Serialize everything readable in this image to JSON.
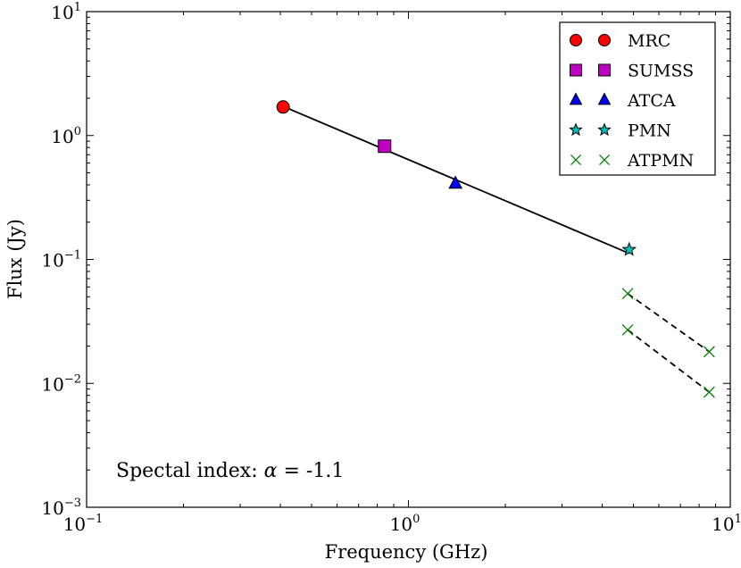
{
  "chart_data": {
    "type": "scatter",
    "scale": {
      "x": "log",
      "y": "log"
    },
    "xlabel": "Frequency (GHz)",
    "ylabel": "Flux (Jy)",
    "xlim": [
      0.1,
      10
    ],
    "ylim": [
      0.001,
      10
    ],
    "x_ticks": [
      {
        "value": 0.1,
        "base": "10",
        "exp": "−1"
      },
      {
        "value": 1,
        "base": "10",
        "exp": "0"
      },
      {
        "value": 10,
        "base": "10",
        "exp": "1"
      }
    ],
    "y_ticks": [
      {
        "value": 0.001,
        "base": "10",
        "exp": "−3"
      },
      {
        "value": 0.01,
        "base": "10",
        "exp": "−2"
      },
      {
        "value": 0.1,
        "base": "10",
        "exp": "−1"
      },
      {
        "value": 1,
        "base": "10",
        "exp": "0"
      },
      {
        "value": 10,
        "base": "10",
        "exp": "1"
      }
    ],
    "series": [
      {
        "name": "MRC",
        "marker": "circle",
        "color": "#ff0000",
        "points": [
          {
            "x": 0.408,
            "y": 1.7
          }
        ]
      },
      {
        "name": "SUMSS",
        "marker": "square",
        "color": "#c000c0",
        "points": [
          {
            "x": 0.843,
            "y": 0.82
          }
        ]
      },
      {
        "name": "ATCA",
        "marker": "triangle",
        "color": "#0000ff",
        "points": [
          {
            "x": 1.4,
            "y": 0.41
          }
        ]
      },
      {
        "name": "PMN",
        "marker": "star",
        "color": "#00c0c0",
        "points": [
          {
            "x": 4.85,
            "y": 0.12
          }
        ]
      },
      {
        "name": "ATPMN",
        "marker": "x",
        "color": "#008000",
        "points": [
          {
            "x": 4.8,
            "y": 0.053
          },
          {
            "x": 4.8,
            "y": 0.027
          },
          {
            "x": 8.6,
            "y": 0.018
          },
          {
            "x": 8.6,
            "y": 0.0085
          }
        ]
      }
    ],
    "fit_line": {
      "style": "solid",
      "color": "#000000",
      "points": [
        {
          "x": 0.408,
          "y": 1.72
        },
        {
          "x": 4.85,
          "y": 0.112
        }
      ]
    },
    "dashed_lines": [
      {
        "style": "dashed",
        "color": "#000000",
        "points": [
          {
            "x": 4.8,
            "y": 0.053
          },
          {
            "x": 8.6,
            "y": 0.018
          }
        ]
      },
      {
        "style": "dashed",
        "color": "#000000",
        "points": [
          {
            "x": 4.8,
            "y": 0.027
          },
          {
            "x": 8.6,
            "y": 0.0085
          }
        ]
      }
    ],
    "legend": {
      "position": "top-right"
    },
    "annotation": {
      "prefix": "Spectal index: ",
      "symbol": "α",
      "suffix": " = -1.1"
    }
  }
}
